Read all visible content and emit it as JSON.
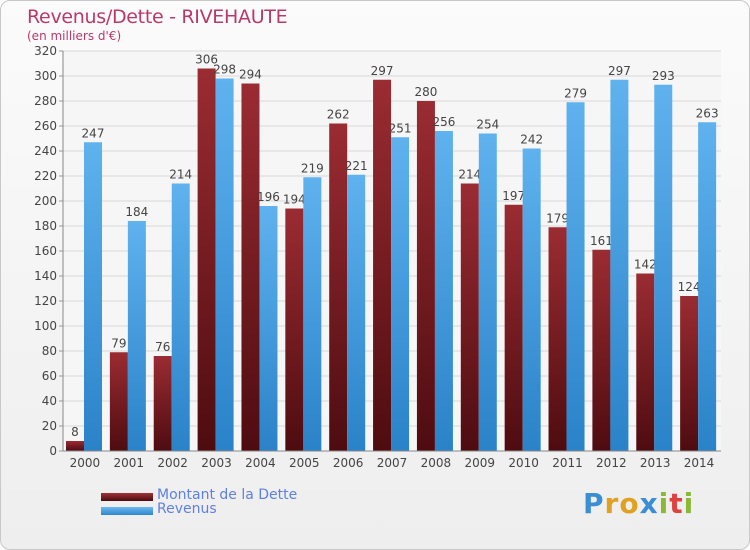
{
  "chart_data": {
    "type": "bar",
    "title": "Revenus/Dette - RIVEHAUTE",
    "subtitle": "(en milliers d'€)",
    "categories": [
      "2000",
      "2001",
      "2002",
      "2003",
      "2004",
      "2005",
      "2006",
      "2007",
      "2008",
      "2009",
      "2010",
      "2011",
      "2012",
      "2013",
      "2014"
    ],
    "series": [
      {
        "name": "Montant de la Dette",
        "color": "#7a1e22",
        "values": [
          8,
          79,
          76,
          306,
          294,
          194,
          262,
          297,
          280,
          214,
          197,
          179,
          161,
          142,
          124
        ]
      },
      {
        "name": "Revenus",
        "color": "#3d97dc",
        "values": [
          247,
          184,
          214,
          298,
          196,
          219,
          221,
          251,
          256,
          254,
          242,
          279,
          297,
          293,
          263
        ]
      }
    ],
    "ylim": [
      0,
      320
    ],
    "yticks": [
      0,
      20,
      40,
      60,
      80,
      100,
      120,
      140,
      160,
      180,
      200,
      220,
      240,
      260,
      280,
      300,
      320
    ],
    "grid": true,
    "legend_position": "bottom-left"
  },
  "logo_text": "Proxiti"
}
